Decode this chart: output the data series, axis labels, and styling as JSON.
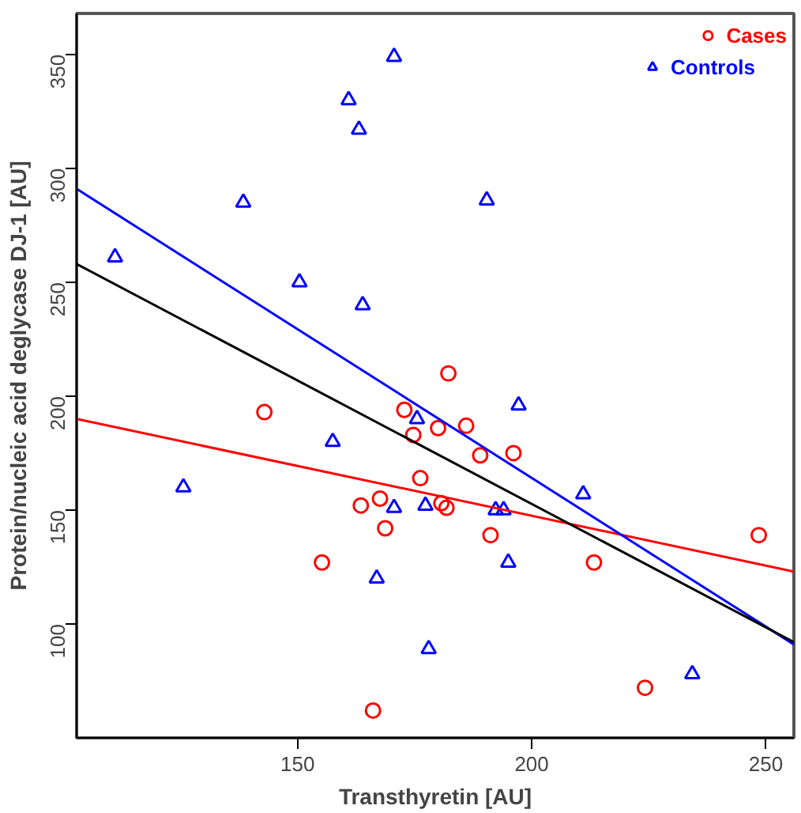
{
  "chart_data": {
    "type": "scatter",
    "xlabel": "Transthyretin [AU]",
    "ylabel": "Protein/nucleic acid deglycase DJ-1 [AU]",
    "xlim": [
      102.8,
      256
    ],
    "ylim": [
      50,
      368
    ],
    "xticks": [
      150,
      200,
      250
    ],
    "yticks": [
      100,
      150,
      200,
      250,
      300,
      350
    ],
    "grid": false,
    "legend": "top right",
    "series": [
      {
        "name": "Cases",
        "color": "#ff0000",
        "marker": "circle",
        "x": [
          142.9,
          155.2,
          163.5,
          166.1,
          167.6,
          168.7,
          172.8,
          174.7,
          176.2,
          180,
          180.7,
          181.8,
          182.2,
          186,
          189,
          191.2,
          196.1,
          213.3,
          224.2,
          248.5
        ],
        "values": [
          193,
          127,
          152,
          62,
          155,
          142,
          194,
          183,
          164,
          186,
          153,
          151,
          210,
          187,
          174,
          139,
          175,
          127,
          72,
          139
        ]
      },
      {
        "name": "Controls",
        "color": "#0000ff",
        "marker": "triangle",
        "x": [
          111,
          125.6,
          138.4,
          150.4,
          157.5,
          160.9,
          163.1,
          163.9,
          166.9,
          170.6,
          170.6,
          175.5,
          177.3,
          178,
          190.4,
          192.3,
          194,
          195,
          197.2,
          211,
          234.3
        ],
        "values": [
          261,
          160,
          285,
          250,
          180,
          330,
          317,
          240,
          120,
          349,
          151,
          190,
          152,
          89,
          286,
          150,
          150,
          127,
          196,
          157,
          78
        ]
      },
      {
        "type": "line",
        "color": "#ff0000",
        "x": [
          102.8,
          256
        ],
        "values": [
          190,
          123
        ]
      },
      {
        "type": "line",
        "color": "#0000ff",
        "x": [
          102.8,
          256
        ],
        "values": [
          291,
          91
        ]
      },
      {
        "type": "line",
        "color": "#000000",
        "x": [
          102.8,
          256
        ],
        "values": [
          258,
          92
        ]
      }
    ]
  }
}
